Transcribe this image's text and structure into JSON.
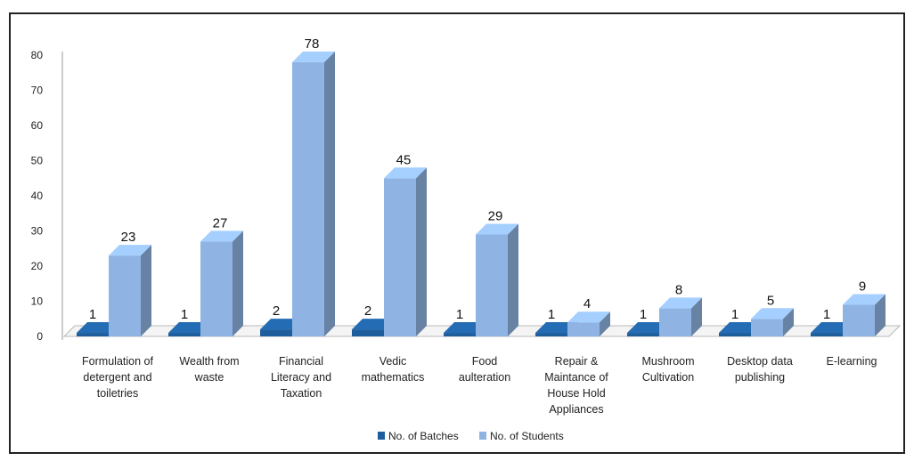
{
  "chart_data": {
    "type": "bar",
    "three_d": true,
    "categories": [
      [
        "Formulation of",
        "detergent and",
        "toiletries"
      ],
      [
        "Wealth from",
        "waste"
      ],
      [
        "Financial",
        "Literacy and",
        "Taxation"
      ],
      [
        "Vedic",
        "mathematics"
      ],
      [
        "Food",
        "aulteration"
      ],
      [
        "Repair &",
        "Maintance of",
        "House Hold",
        "Appliances"
      ],
      [
        "Mushroom",
        "Cultivation"
      ],
      [
        "Desktop data",
        "publishing"
      ],
      [
        "E-learning"
      ]
    ],
    "series": [
      {
        "name": "No. of Batches",
        "values": [
          1,
          1,
          2,
          2,
          1,
          1,
          1,
          1,
          1
        ],
        "color": "#1f5e9c"
      },
      {
        "name": "No. of Students",
        "values": [
          23,
          27,
          78,
          45,
          29,
          4,
          8,
          5,
          9
        ],
        "color": "#8fb4e3"
      }
    ],
    "ylim": [
      0,
      80
    ],
    "yticks": [
      0,
      10,
      20,
      30,
      40,
      50,
      60,
      70,
      80
    ],
    "legend_position": "bottom",
    "grid": false
  }
}
